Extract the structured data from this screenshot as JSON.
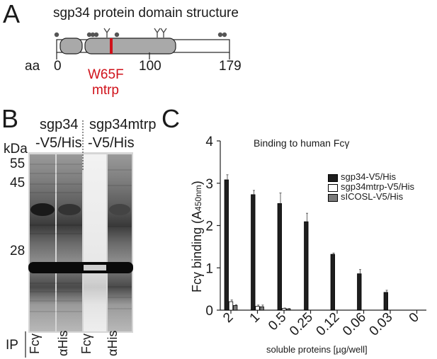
{
  "panel_a": {
    "letter": "A",
    "title": "sgp34 protein domain structure",
    "aa_label": "aa",
    "ticks": [
      "0",
      "100",
      "179"
    ],
    "mutation": "W65F",
    "mutation_name": "mtrp",
    "colors": {
      "mutation": "#d0121b",
      "domain": "#a9a9a9",
      "glyco": "#555555"
    }
  },
  "panel_b": {
    "letter": "B",
    "group1": [
      "sgp34",
      "-V5/His"
    ],
    "group2": [
      "sgp34mtrp",
      "-V5/His"
    ],
    "kda_label": "kDa",
    "markers": [
      "55",
      "45",
      "28"
    ],
    "ip_label": "IP",
    "lanes": [
      "Fcγ",
      "αHis",
      "Fcγ",
      "αHis"
    ]
  },
  "panel_c": {
    "letter": "C",
    "title": "Binding to human Fcγ",
    "ylabel_main": "Fcγ binding (A",
    "ylabel_sub": "450nm",
    "ylabel_end": ")",
    "xlabel": "soluble  proteins [µg/well]",
    "yticks": [
      "0",
      "1",
      "2",
      "3",
      "4"
    ],
    "legend": [
      "sgp34-V5/His",
      "sgp34mtrp-V5/His",
      "sICOSL-V5/His"
    ]
  },
  "chart_data": {
    "type": "bar",
    "title": "Binding to human Fcγ",
    "xlabel": "soluble  proteins [µg/well]",
    "ylabel": "Fcγ binding (A450nm)",
    "ylim": [
      0,
      4
    ],
    "categories": [
      "2",
      "1",
      "0.5",
      "0.25",
      "0.12",
      "0.06",
      "0.03",
      "0"
    ],
    "legend_position": "top-right",
    "series": [
      {
        "name": "sgp34-V5/His",
        "color": "#1e1e1e",
        "values": [
          3.08,
          2.73,
          2.52,
          2.09,
          1.32,
          0.86,
          0.42,
          0
        ],
        "errors": [
          0.12,
          0.1,
          0.25,
          0.2,
          0.03,
          0.1,
          0.05,
          0
        ]
      },
      {
        "name": "sgp34mtrp-V5/His",
        "color": "#ffffff",
        "values": [
          0.2,
          0.09,
          0.04,
          0,
          0,
          0,
          0,
          0
        ],
        "errors": [
          0.04,
          0.03,
          0.01,
          0,
          0,
          0,
          0,
          0
        ]
      },
      {
        "name": "sICOSL-V5/His",
        "color": "#7a7a7a",
        "values": [
          0.11,
          0.08,
          0.03,
          0,
          0,
          0,
          0,
          0
        ],
        "errors": [
          0.02,
          0.04,
          0.01,
          0,
          0,
          0,
          0,
          0
        ]
      }
    ]
  }
}
